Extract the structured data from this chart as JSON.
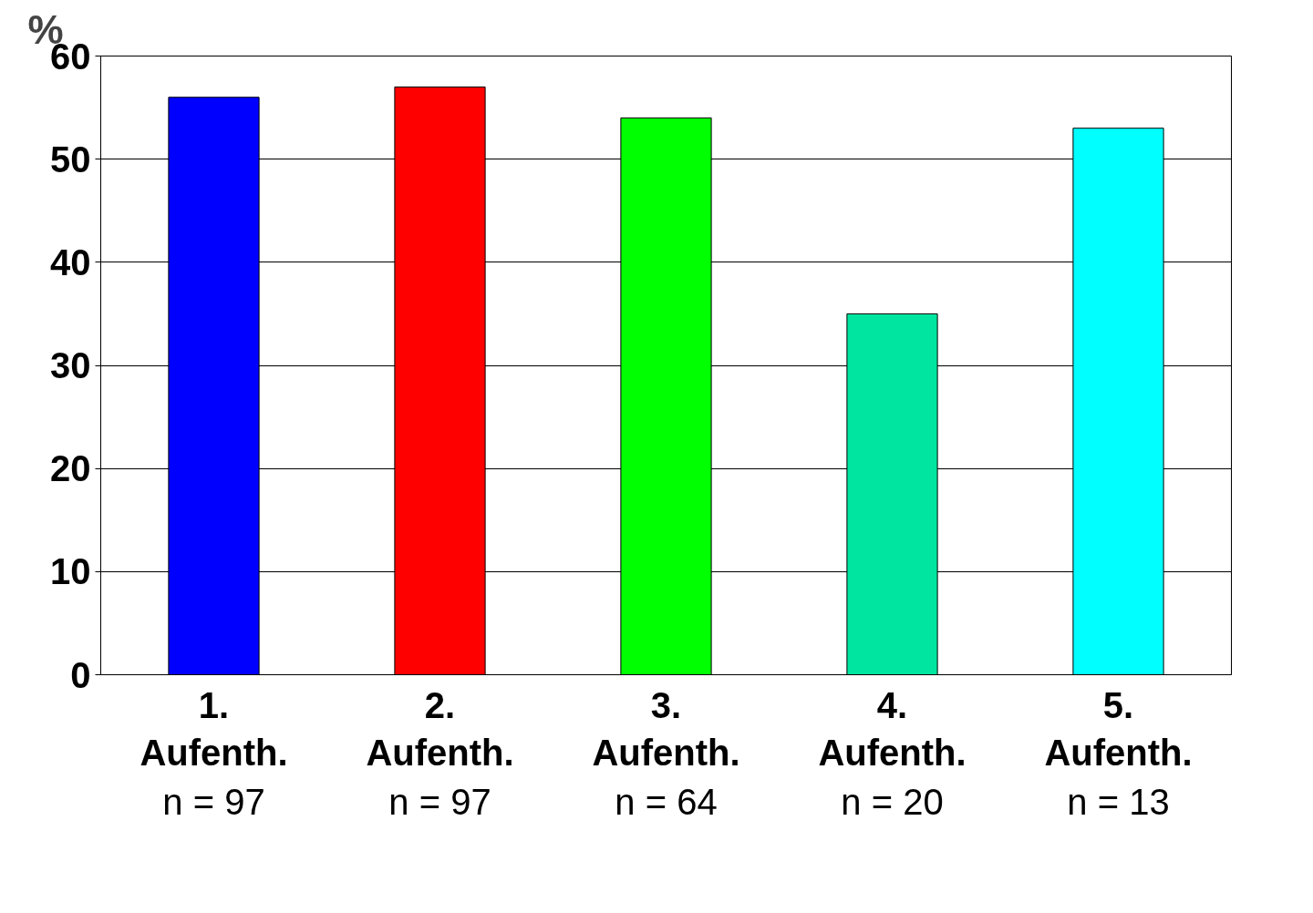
{
  "chart_data": {
    "type": "bar",
    "ylabel": "%",
    "categories": [
      "1.\nAufenth.\nn = 97",
      "2.\nAufenth.\nn = 97",
      "3.\nAufenth.\nn = 64",
      "4.\nAufenth.\nn = 20",
      "5.\nAufenth.\nn = 13"
    ],
    "values": [
      56,
      57,
      54,
      35,
      53
    ],
    "colors": [
      "#0000ff",
      "#ff0000",
      "#00ff00",
      "#00e6a0",
      "#00ffff"
    ],
    "ylim": [
      0,
      60
    ],
    "yticks": [
      0,
      10,
      20,
      30,
      40,
      50,
      60
    ],
    "grid": "y"
  }
}
